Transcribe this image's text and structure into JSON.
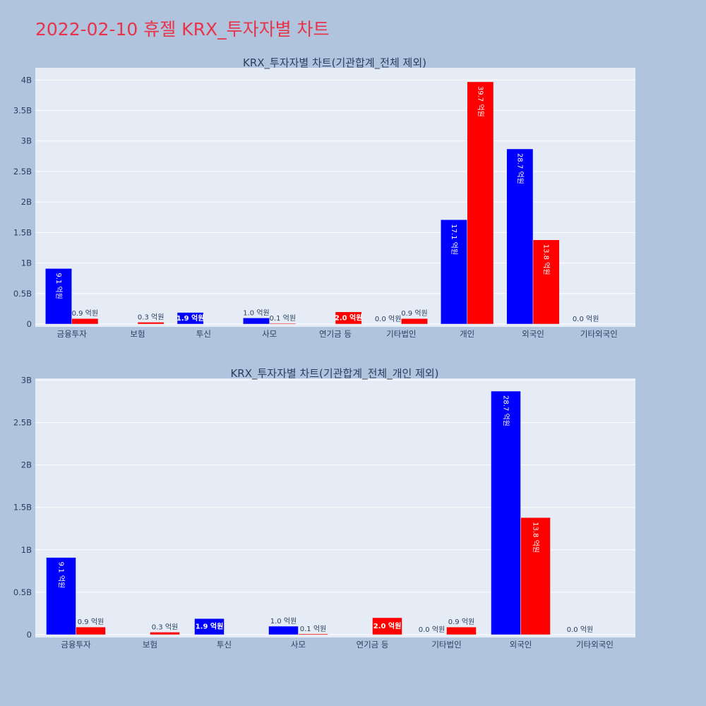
{
  "page_title": "2022-02-10 휴젤 KRX_투자자별 차트",
  "colors": {
    "background": "#b0c4de",
    "plot_bg": "#e5ecf6",
    "title": "#e8334a",
    "series_a": "#0000ff",
    "series_b": "#ff0000"
  },
  "chart_data": [
    {
      "type": "bar",
      "title": "KRX_투자자별 차트(기관합계_전체 제외)",
      "categories": [
        "금융투자",
        "보험",
        "투신",
        "사모",
        "연기금 등",
        "기타법인",
        "개인",
        "외국인",
        "기타외국인"
      ],
      "ylim": [
        0,
        4200000000
      ],
      "yticks": [
        0,
        500000000,
        1000000000,
        1500000000,
        2000000000,
        2500000000,
        3000000000,
        3500000000,
        4000000000
      ],
      "ytick_labels": [
        "0",
        "0.5B",
        "1B",
        "1.5B",
        "2B",
        "2.5B",
        "3B",
        "3.5B",
        "4B"
      ],
      "grid": true,
      "series": [
        {
          "color": "#0000ff",
          "values": [
            910000000,
            null,
            190000000,
            100000000,
            null,
            0,
            1710000000,
            2870000000,
            0
          ],
          "labels": [
            "9.1 억원",
            "",
            "1.9 억원",
            "1.0 억원",
            "",
            "0.0 억원",
            "17.1 억원",
            "28.7 억원",
            "0.0 억원"
          ]
        },
        {
          "color": "#ff0000",
          "values": [
            90000000,
            30000000,
            null,
            10000000,
            200000000,
            90000000,
            3970000000,
            1380000000,
            null
          ],
          "labels": [
            "0.9 억원",
            "0.3 억원",
            "",
            "0.1 억원",
            "2.0 억원",
            "0.9 억원",
            "39.7 억원",
            "13.8 억원",
            ""
          ]
        }
      ]
    },
    {
      "type": "bar",
      "title": "KRX_투자자별 차트(기관합계_전체_개인 제외)",
      "categories": [
        "금융투자",
        "보험",
        "투신",
        "사모",
        "연기금 등",
        "기타법인",
        "외국인",
        "기타외국인"
      ],
      "ylim": [
        0,
        3020000000
      ],
      "yticks": [
        0,
        500000000,
        1000000000,
        1500000000,
        2000000000,
        2500000000,
        3000000000
      ],
      "ytick_labels": [
        "0",
        "0.5B",
        "1B",
        "1.5B",
        "2B",
        "2.5B",
        "3B"
      ],
      "grid": true,
      "series": [
        {
          "color": "#0000ff",
          "values": [
            910000000,
            null,
            190000000,
            100000000,
            null,
            0,
            2870000000,
            0
          ],
          "labels": [
            "9.1 억원",
            "",
            "1.9 억원",
            "1.0 억원",
            "",
            "0.0 억원",
            "28.7 억원",
            "0.0 억원"
          ]
        },
        {
          "color": "#ff0000",
          "values": [
            90000000,
            30000000,
            null,
            10000000,
            200000000,
            90000000,
            1380000000,
            null
          ],
          "labels": [
            "0.9 억원",
            "0.3 억원",
            "",
            "0.1 억원",
            "2.0 억원",
            "0.9 억원",
            "13.8 억원",
            ""
          ]
        }
      ]
    }
  ]
}
